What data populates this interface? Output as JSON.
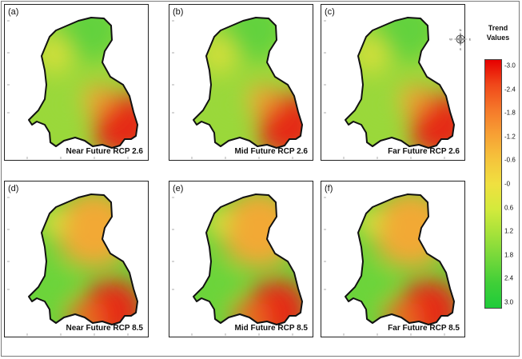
{
  "panels": [
    {
      "letter": "(a)",
      "caption": "Near Future RCP 2.6"
    },
    {
      "letter": "(b)",
      "caption": "Mid Future RCP 2.6"
    },
    {
      "letter": "(c)",
      "caption": "Far Future RCP 2.6"
    },
    {
      "letter": "(d)",
      "caption": "Near Future RCP 8.5"
    },
    {
      "letter": "(e)",
      "caption": "Mid Future RCP 8.5"
    },
    {
      "letter": "(f)",
      "caption": "Far Future RCP 8.5"
    }
  ],
  "legend": {
    "title_line1": "Trend",
    "title_line2": "Values",
    "ticks": [
      "-3.0",
      "-2.4",
      "-1.8",
      "-1.2",
      "-0.6",
      "-0",
      "0.6",
      "1.2",
      "1.8",
      "2.4",
      "3.0"
    ],
    "colors": [
      "#e60000",
      "#f0481a",
      "#f5782a",
      "#f7a034",
      "#f5c43c",
      "#f0e040",
      "#d4ea3c",
      "#a6e23a",
      "#74d83a",
      "#40cf38",
      "#1fcc3a"
    ]
  },
  "north_arrow": {
    "n": "N",
    "s": "S",
    "e": "E",
    "w": "W"
  },
  "scheme_colors": {
    "rcp26": {
      "north": "#62d23c",
      "northwest": "#d8e03a",
      "center": "#9ad83a",
      "southeast": "#e52a12"
    },
    "rcp85": {
      "north": "#f2a936",
      "northwest": "#d8e03c",
      "center": "#6cd43a",
      "southeast": "#e52a12"
    }
  }
}
